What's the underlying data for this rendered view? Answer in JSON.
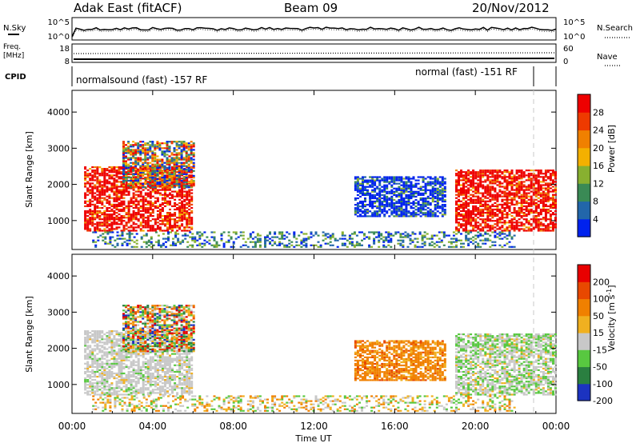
{
  "header": {
    "station": "Adak East (fitACF)",
    "beam": "Beam 09",
    "date": "20/Nov/2012"
  },
  "noise_panel": {
    "left_label": "N.Sky",
    "left_ticks": [
      "10^5",
      "10^0"
    ],
    "right_label": "N.Search",
    "right_ticks": [
      "10^5",
      "10^0"
    ]
  },
  "freq_panel": {
    "left_label_1": "Freq.",
    "left_label_2": "[MHz]",
    "left_ticks": [
      "18",
      "8"
    ],
    "right_label": "Nave",
    "right_ticks": [
      "60",
      "0"
    ]
  },
  "cpid_panel": {
    "label": "CPID",
    "mode_1": "normalsound (fast) -157 RF",
    "mode_2": "normal (fast) -151 RF"
  },
  "chart_data": [
    {
      "type": "heatmap",
      "name": "power",
      "ylabel": "Slant Range [km]",
      "xlabel": "Time UT",
      "ylim": [
        200,
        4600
      ],
      "y_ticks": [
        1000,
        2000,
        3000,
        4000
      ],
      "x_ticks": [
        "00:00",
        "04:00",
        "08:00",
        "12:00",
        "16:00",
        "20:00",
        "00:00"
      ],
      "colorbar": {
        "label": "Power [dB]",
        "ticks": [
          "4",
          "8",
          "12",
          "16",
          "20",
          "24",
          "28"
        ],
        "colors": [
          "#0022ee",
          "#2266aa",
          "#3a8a55",
          "#88b030",
          "#f4b000",
          "#f08000",
          "#ee3a00",
          "#ee0000"
        ]
      },
      "regions": [
        {
          "t0": 0.6,
          "t1": 6.0,
          "r0": 700,
          "r1": 2500,
          "level": "high"
        },
        {
          "t0": 2.5,
          "t1": 6.0,
          "r0": 1900,
          "r1": 3200,
          "level": "mixed"
        },
        {
          "t0": 14.0,
          "t1": 18.5,
          "r0": 1100,
          "r1": 2200,
          "level": "low"
        },
        {
          "t0": 19.0,
          "t1": 24.0,
          "r0": 700,
          "r1": 2400,
          "level": "high"
        },
        {
          "t0": 1.0,
          "t1": 22.0,
          "r0": 250,
          "r1": 700,
          "level": "ground"
        }
      ]
    },
    {
      "type": "heatmap",
      "name": "velocity",
      "ylabel": "Slant Range [km]",
      "xlabel": "Time UT",
      "ylim": [
        200,
        4600
      ],
      "y_ticks": [
        1000,
        2000,
        3000,
        4000
      ],
      "x_ticks": [
        "00:00",
        "04:00",
        "08:00",
        "12:00",
        "16:00",
        "20:00",
        "00:00"
      ],
      "colorbar": {
        "label_main": "Velocity [m s",
        "label_sup": "-1",
        "label_end": "]",
        "ticks": [
          "200",
          "100",
          "50",
          "15",
          "-15",
          "-50",
          "-100",
          "-200"
        ],
        "colors": [
          "#1c33c0",
          "#2a7f40",
          "#58c840",
          "#c8c8c8",
          "#f0b020",
          "#f08000",
          "#e84800",
          "#e80000"
        ]
      },
      "regions": [
        {
          "t0": 0.6,
          "t1": 6.0,
          "r0": 700,
          "r1": 2500,
          "level": "grey"
        },
        {
          "t0": 2.5,
          "t1": 6.0,
          "r0": 1900,
          "r1": 3200,
          "level": "mixed"
        },
        {
          "t0": 14.0,
          "t1": 18.5,
          "r0": 1100,
          "r1": 2200,
          "level": "orange"
        },
        {
          "t0": 19.0,
          "t1": 24.0,
          "r0": 700,
          "r1": 2400,
          "level": "greygreen"
        },
        {
          "t0": 1.0,
          "t1": 22.0,
          "r0": 250,
          "r1": 700,
          "level": "ground"
        }
      ]
    }
  ],
  "colors": {
    "axis": "#000000",
    "dashed_marker": "#c8c8c8"
  }
}
